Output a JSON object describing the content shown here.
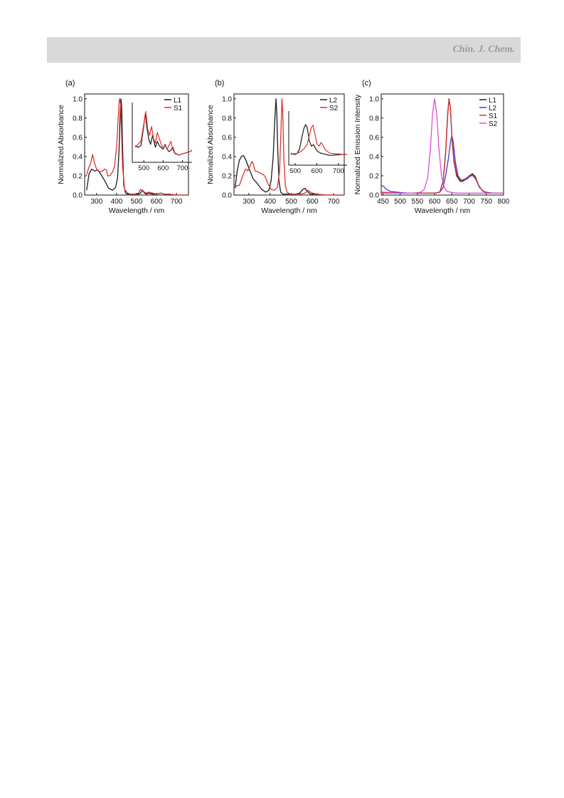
{
  "header": {
    "journal": "Chin. J. Chem."
  },
  "chart_data": [
    {
      "type": "line",
      "panel_label": "(a)",
      "xlabel": "Wavelength / nm",
      "ylabel": "Normalized Absorbance",
      "xlim": [
        240,
        760
      ],
      "ylim": [
        0,
        1.05
      ],
      "xticks": [
        300,
        400,
        500,
        600,
        700
      ],
      "yticks": [
        0.0,
        0.2,
        0.4,
        0.6,
        0.8,
        1.0
      ],
      "legend": "top-right",
      "colors": {
        "L1": "#1a1a1a",
        "S1": "#e03030"
      },
      "series": [
        {
          "name": "L1",
          "x": [
            250,
            262,
            275,
            290,
            305,
            320,
            340,
            360,
            380,
            395,
            405,
            412,
            418,
            422,
            426,
            430,
            436,
            445,
            455,
            470,
            490,
            510,
            520,
            530,
            540,
            550,
            560,
            580,
            600,
            620,
            640,
            660,
            700,
            750
          ],
          "y": [
            0.05,
            0.22,
            0.27,
            0.25,
            0.26,
            0.22,
            0.15,
            0.07,
            0.05,
            0.08,
            0.18,
            0.45,
            0.85,
            1.0,
            0.9,
            0.5,
            0.1,
            0.02,
            0.01,
            0.01,
            0.01,
            0.01,
            0.02,
            0.05,
            0.02,
            0.01,
            0.02,
            0.01,
            0.01,
            0.02,
            0.01,
            0.01,
            0.0,
            0.0
          ]
        },
        {
          "name": "S1",
          "x": [
            250,
            260,
            270,
            280,
            290,
            300,
            315,
            330,
            340,
            350,
            355,
            365,
            380,
            390,
            400,
            408,
            414,
            420,
            424,
            430,
            440,
            455,
            470,
            490,
            510,
            520,
            530,
            540,
            550,
            560,
            580,
            600,
            620,
            640,
            660,
            700,
            750
          ],
          "y": [
            0.21,
            0.28,
            0.33,
            0.42,
            0.33,
            0.27,
            0.24,
            0.25,
            0.27,
            0.26,
            0.2,
            0.2,
            0.24,
            0.3,
            0.5,
            0.8,
            1.0,
            0.95,
            0.7,
            0.3,
            0.06,
            0.02,
            0.01,
            0.01,
            0.02,
            0.06,
            0.04,
            0.03,
            0.02,
            0.03,
            0.02,
            0.01,
            0.02,
            0.01,
            0.01,
            0.0,
            0.0
          ]
        }
      ],
      "inset": {
        "xlim": [
          440,
          750
        ],
        "xticks": [
          500,
          600,
          700
        ],
        "series": [
          {
            "name": "L1",
            "x": [
              455,
              470,
              485,
              500,
              508,
              515,
              525,
              535,
              545,
              560,
              570,
              580,
              590,
              600,
              610,
              620,
              630,
              640,
              650,
              660,
              680,
              700,
              720,
              740,
              750
            ],
            "y": [
              0.28,
              0.25,
              0.28,
              0.62,
              0.82,
              0.6,
              0.4,
              0.3,
              0.45,
              0.25,
              0.35,
              0.28,
              0.25,
              0.22,
              0.3,
              0.22,
              0.18,
              0.2,
              0.25,
              0.16,
              0.12,
              0.14,
              0.16,
              0.18,
              0.2
            ]
          },
          {
            "name": "S1",
            "x": [
              455,
              470,
              485,
              500,
              510,
              520,
              530,
              540,
              550,
              560,
              570,
              580,
              590,
              600,
              610,
              620,
              630,
              640,
              650,
              660,
              680,
              700,
              720,
              740,
              750
            ],
            "y": [
              0.25,
              0.3,
              0.35,
              0.65,
              0.85,
              0.55,
              0.45,
              0.6,
              0.4,
              0.32,
              0.5,
              0.4,
              0.3,
              0.25,
              0.28,
              0.22,
              0.28,
              0.35,
              0.22,
              0.15,
              0.12,
              0.14,
              0.16,
              0.18,
              0.2
            ]
          }
        ]
      }
    },
    {
      "type": "line",
      "panel_label": "(b)",
      "xlabel": "Wavelength / nm",
      "ylabel": "Normalized Absorbance",
      "xlim": [
        230,
        750
      ],
      "ylim": [
        0,
        1.05
      ],
      "xticks": [
        300,
        400,
        500,
        600,
        700
      ],
      "yticks": [
        0.0,
        0.2,
        0.4,
        0.6,
        0.8,
        1.0
      ],
      "legend": "top-right",
      "colors": {
        "L2": "#1a1a1a",
        "S2": "#e03030"
      },
      "series": [
        {
          "name": "L2",
          "x": [
            235,
            245,
            255,
            265,
            275,
            285,
            300,
            320,
            340,
            360,
            380,
            395,
            405,
            415,
            422,
            428,
            432,
            436,
            442,
            450,
            460,
            480,
            500,
            520,
            540,
            555,
            565,
            575,
            590,
            620,
            660,
            700,
            750
          ],
          "y": [
            0.07,
            0.25,
            0.36,
            0.4,
            0.41,
            0.37,
            0.28,
            0.17,
            0.12,
            0.06,
            0.03,
            0.05,
            0.15,
            0.4,
            0.75,
            1.0,
            0.85,
            0.5,
            0.15,
            0.03,
            0.01,
            0.01,
            0.01,
            0.01,
            0.02,
            0.06,
            0.07,
            0.04,
            0.01,
            0.01,
            0.0,
            0.0,
            0.0
          ]
        },
        {
          "name": "S2",
          "x": [
            235,
            245,
            255,
            265,
            275,
            285,
            295,
            305,
            315,
            320,
            330,
            345,
            360,
            375,
            390,
            405,
            420,
            435,
            445,
            452,
            456,
            460,
            465,
            472,
            480,
            495,
            520,
            545,
            565,
            580,
            590,
            600,
            620,
            650,
            700,
            750
          ],
          "y": [
            0.08,
            0.1,
            0.1,
            0.16,
            0.22,
            0.27,
            0.25,
            0.3,
            0.35,
            0.33,
            0.25,
            0.24,
            0.22,
            0.2,
            0.12,
            0.06,
            0.05,
            0.08,
            0.25,
            0.7,
            1.0,
            0.85,
            0.4,
            0.1,
            0.03,
            0.01,
            0.01,
            0.01,
            0.02,
            0.05,
            0.03,
            0.02,
            0.01,
            0.0,
            0.0,
            0.0
          ]
        }
      ],
      "inset": {
        "xlim": [
          470,
          740
        ],
        "xticks": [
          500,
          600,
          700
        ],
        "series": [
          {
            "name": "L2",
            "x": [
              480,
              490,
              500,
              510,
              520,
              530,
              540,
              548,
              555,
              565,
              575,
              585,
              595,
              605,
              620,
              640,
              660,
              690,
              720,
              740
            ],
            "y": [
              0.22,
              0.2,
              0.2,
              0.22,
              0.3,
              0.5,
              0.68,
              0.75,
              0.7,
              0.45,
              0.35,
              0.38,
              0.3,
              0.25,
              0.22,
              0.2,
              0.18,
              0.19,
              0.2,
              0.2
            ]
          },
          {
            "name": "S2",
            "x": [
              480,
              495,
              510,
              525,
              540,
              555,
              565,
              575,
              582,
              590,
              600,
              610,
              620,
              630,
              640,
              660,
              690,
              720,
              740
            ],
            "y": [
              0.2,
              0.21,
              0.22,
              0.25,
              0.3,
              0.38,
              0.55,
              0.7,
              0.74,
              0.6,
              0.4,
              0.35,
              0.42,
              0.35,
              0.28,
              0.22,
              0.21,
              0.2,
              0.2
            ]
          }
        ]
      }
    },
    {
      "type": "line",
      "panel_label": "(c)",
      "xlabel": "Wavelength / nm",
      "ylabel": "Normalized Emission Intensity",
      "xlim": [
        445,
        800
      ],
      "ylim": [
        0,
        1.05
      ],
      "xticks": [
        450,
        500,
        550,
        600,
        650,
        700,
        750,
        800
      ],
      "yticks": [
        0.0,
        0.2,
        0.4,
        0.6,
        0.8,
        1.0
      ],
      "legend": "top-right",
      "colors": {
        "L1": "#1a1a1a",
        "L2": "#3b3bd8",
        "S1": "#e03030",
        "S2": "#d850d8"
      },
      "series": [
        {
          "name": "L1",
          "x": [
            445,
            500,
            560,
            600,
            615,
            625,
            632,
            638,
            642,
            646,
            650,
            656,
            664,
            675,
            690,
            700,
            710,
            718,
            728,
            740,
            760,
            800
          ],
          "y": [
            0.02,
            0.02,
            0.02,
            0.02,
            0.03,
            0.15,
            0.45,
            0.85,
            1.0,
            0.9,
            0.6,
            0.35,
            0.2,
            0.14,
            0.17,
            0.2,
            0.22,
            0.19,
            0.1,
            0.04,
            0.02,
            0.02
          ]
        },
        {
          "name": "L2",
          "x": [
            445,
            452,
            460,
            470,
            490,
            520,
            560,
            600,
            615,
            625,
            632,
            640,
            646,
            650,
            654,
            660,
            668,
            680,
            695,
            705,
            712,
            720,
            730,
            745,
            770,
            800
          ],
          "y": [
            0.1,
            0.09,
            0.06,
            0.04,
            0.03,
            0.02,
            0.02,
            0.02,
            0.03,
            0.08,
            0.2,
            0.38,
            0.55,
            0.62,
            0.55,
            0.35,
            0.2,
            0.14,
            0.17,
            0.2,
            0.2,
            0.16,
            0.08,
            0.03,
            0.02,
            0.02
          ]
        },
        {
          "name": "S1",
          "x": [
            445,
            500,
            560,
            600,
            615,
            625,
            632,
            638,
            642,
            646,
            650,
            656,
            664,
            675,
            690,
            700,
            710,
            718,
            728,
            740,
            760,
            800
          ],
          "y": [
            0.03,
            0.02,
            0.02,
            0.02,
            0.03,
            0.14,
            0.43,
            0.83,
            0.99,
            0.9,
            0.62,
            0.37,
            0.22,
            0.15,
            0.17,
            0.2,
            0.21,
            0.18,
            0.1,
            0.04,
            0.02,
            0.02
          ]
        },
        {
          "name": "S2",
          "x": [
            445,
            500,
            540,
            560,
            570,
            580,
            588,
            594,
            600,
            606,
            612,
            620,
            628,
            635,
            645,
            660,
            680,
            700,
            720,
            760,
            800
          ],
          "y": [
            0.02,
            0.02,
            0.02,
            0.03,
            0.06,
            0.18,
            0.5,
            0.85,
            1.0,
            0.85,
            0.5,
            0.2,
            0.08,
            0.04,
            0.03,
            0.02,
            0.02,
            0.02,
            0.02,
            0.02,
            0.02
          ]
        }
      ]
    }
  ]
}
